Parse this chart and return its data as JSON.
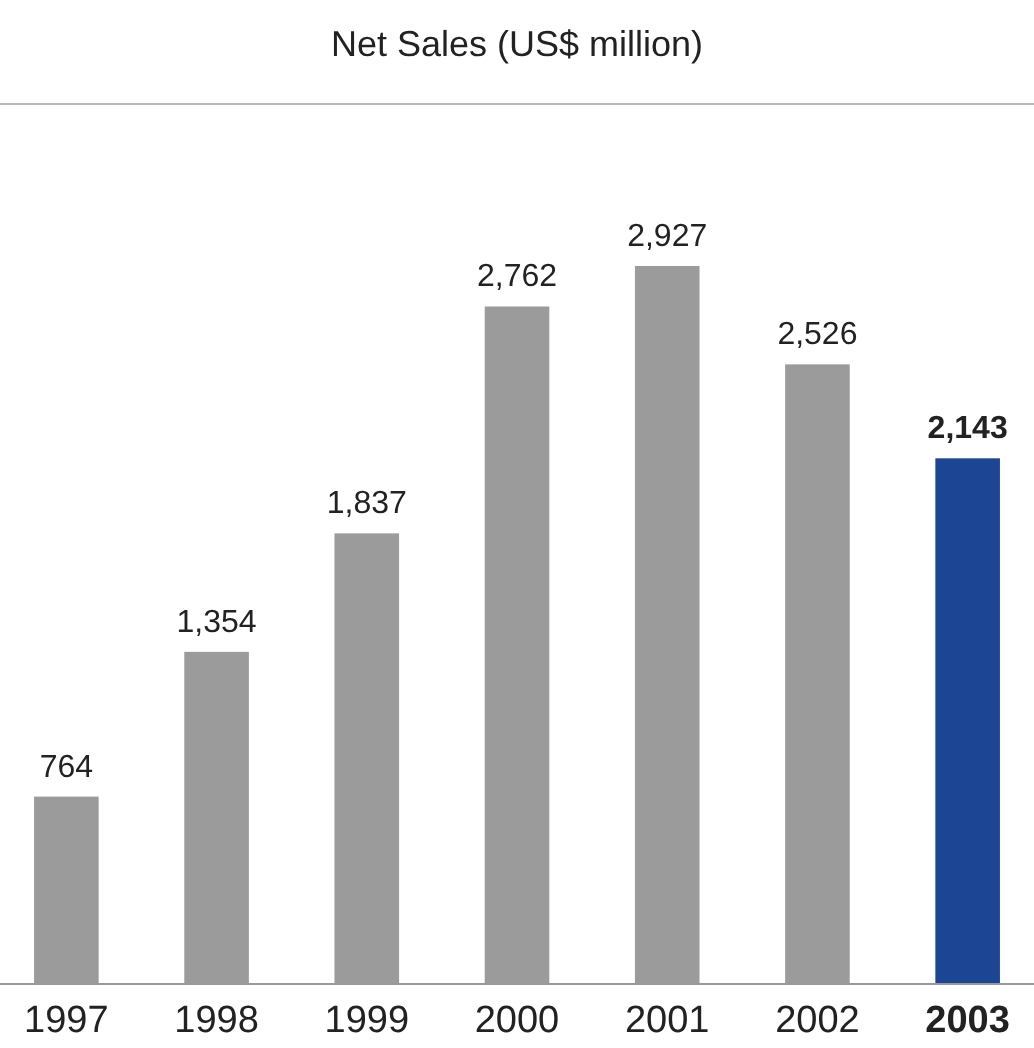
{
  "chart_data": {
    "type": "bar",
    "title": "Net Sales (US$ million)",
    "categories": [
      "1997",
      "1998",
      "1999",
      "2000",
      "2001",
      "2002",
      "2003"
    ],
    "values": [
      764,
      1354,
      1837,
      2762,
      2927,
      2526,
      2143
    ],
    "colors": [
      "#9b9b9b",
      "#9b9b9b",
      "#9b9b9b",
      "#9b9b9b",
      "#9b9b9b",
      "#9b9b9b",
      "#1c4593"
    ],
    "value_labels": [
      "764",
      "1,354",
      "1,837",
      "2,762",
      "2,927",
      "2,526",
      "2,143"
    ]
  }
}
